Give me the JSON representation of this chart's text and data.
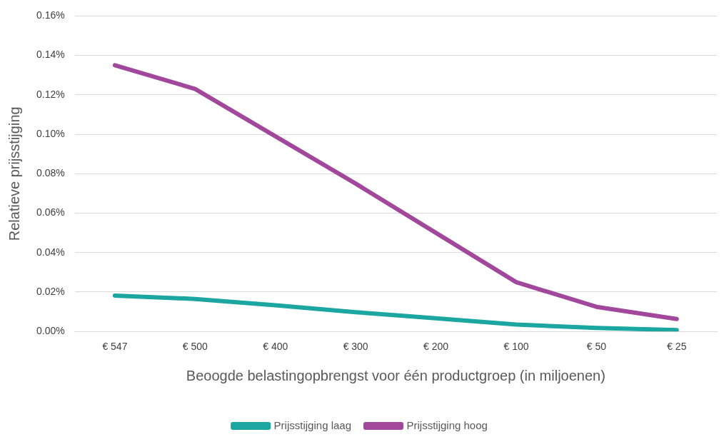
{
  "chart_data": {
    "type": "line",
    "xlabel": "Beoogde belastingopbrengst voor één productgroep (in miljoenen)",
    "ylabel": "Relatieve prijsstijging",
    "categories": [
      "€ 547",
      "€ 500",
      "€ 400",
      "€ 300",
      "€ 200",
      "€ 100",
      "€ 50",
      "€ 25"
    ],
    "series": [
      {
        "name": "Prijsstijging laag",
        "color": "#1ba6a1",
        "values": [
          0.0182,
          0.0165,
          0.0133,
          0.0098,
          0.0067,
          0.0035,
          0.0018,
          0.0007
        ]
      },
      {
        "name": "Prijsstijging hoog",
        "color": "#a2489c",
        "values": [
          0.135,
          0.123,
          0.099,
          0.075,
          0.05,
          0.025,
          0.0125,
          0.0063
        ]
      }
    ],
    "ylim": [
      0,
      0.16
    ],
    "yticks": [
      {
        "value": 0,
        "label": "0.00%"
      },
      {
        "value": 0.02,
        "label": "0.02%"
      },
      {
        "value": 0.04,
        "label": "0.04%"
      },
      {
        "value": 0.06,
        "label": "0.06%"
      },
      {
        "value": 0.08,
        "label": "0.08%"
      },
      {
        "value": 0.1,
        "label": "0.10%"
      },
      {
        "value": 0.12,
        "label": "0.12%"
      },
      {
        "value": 0.14,
        "label": "0.14%"
      },
      {
        "value": 0.16,
        "label": "0.16%"
      }
    ],
    "grid": "y",
    "legend": "bottom",
    "marker": "none",
    "line_style": "solid"
  }
}
